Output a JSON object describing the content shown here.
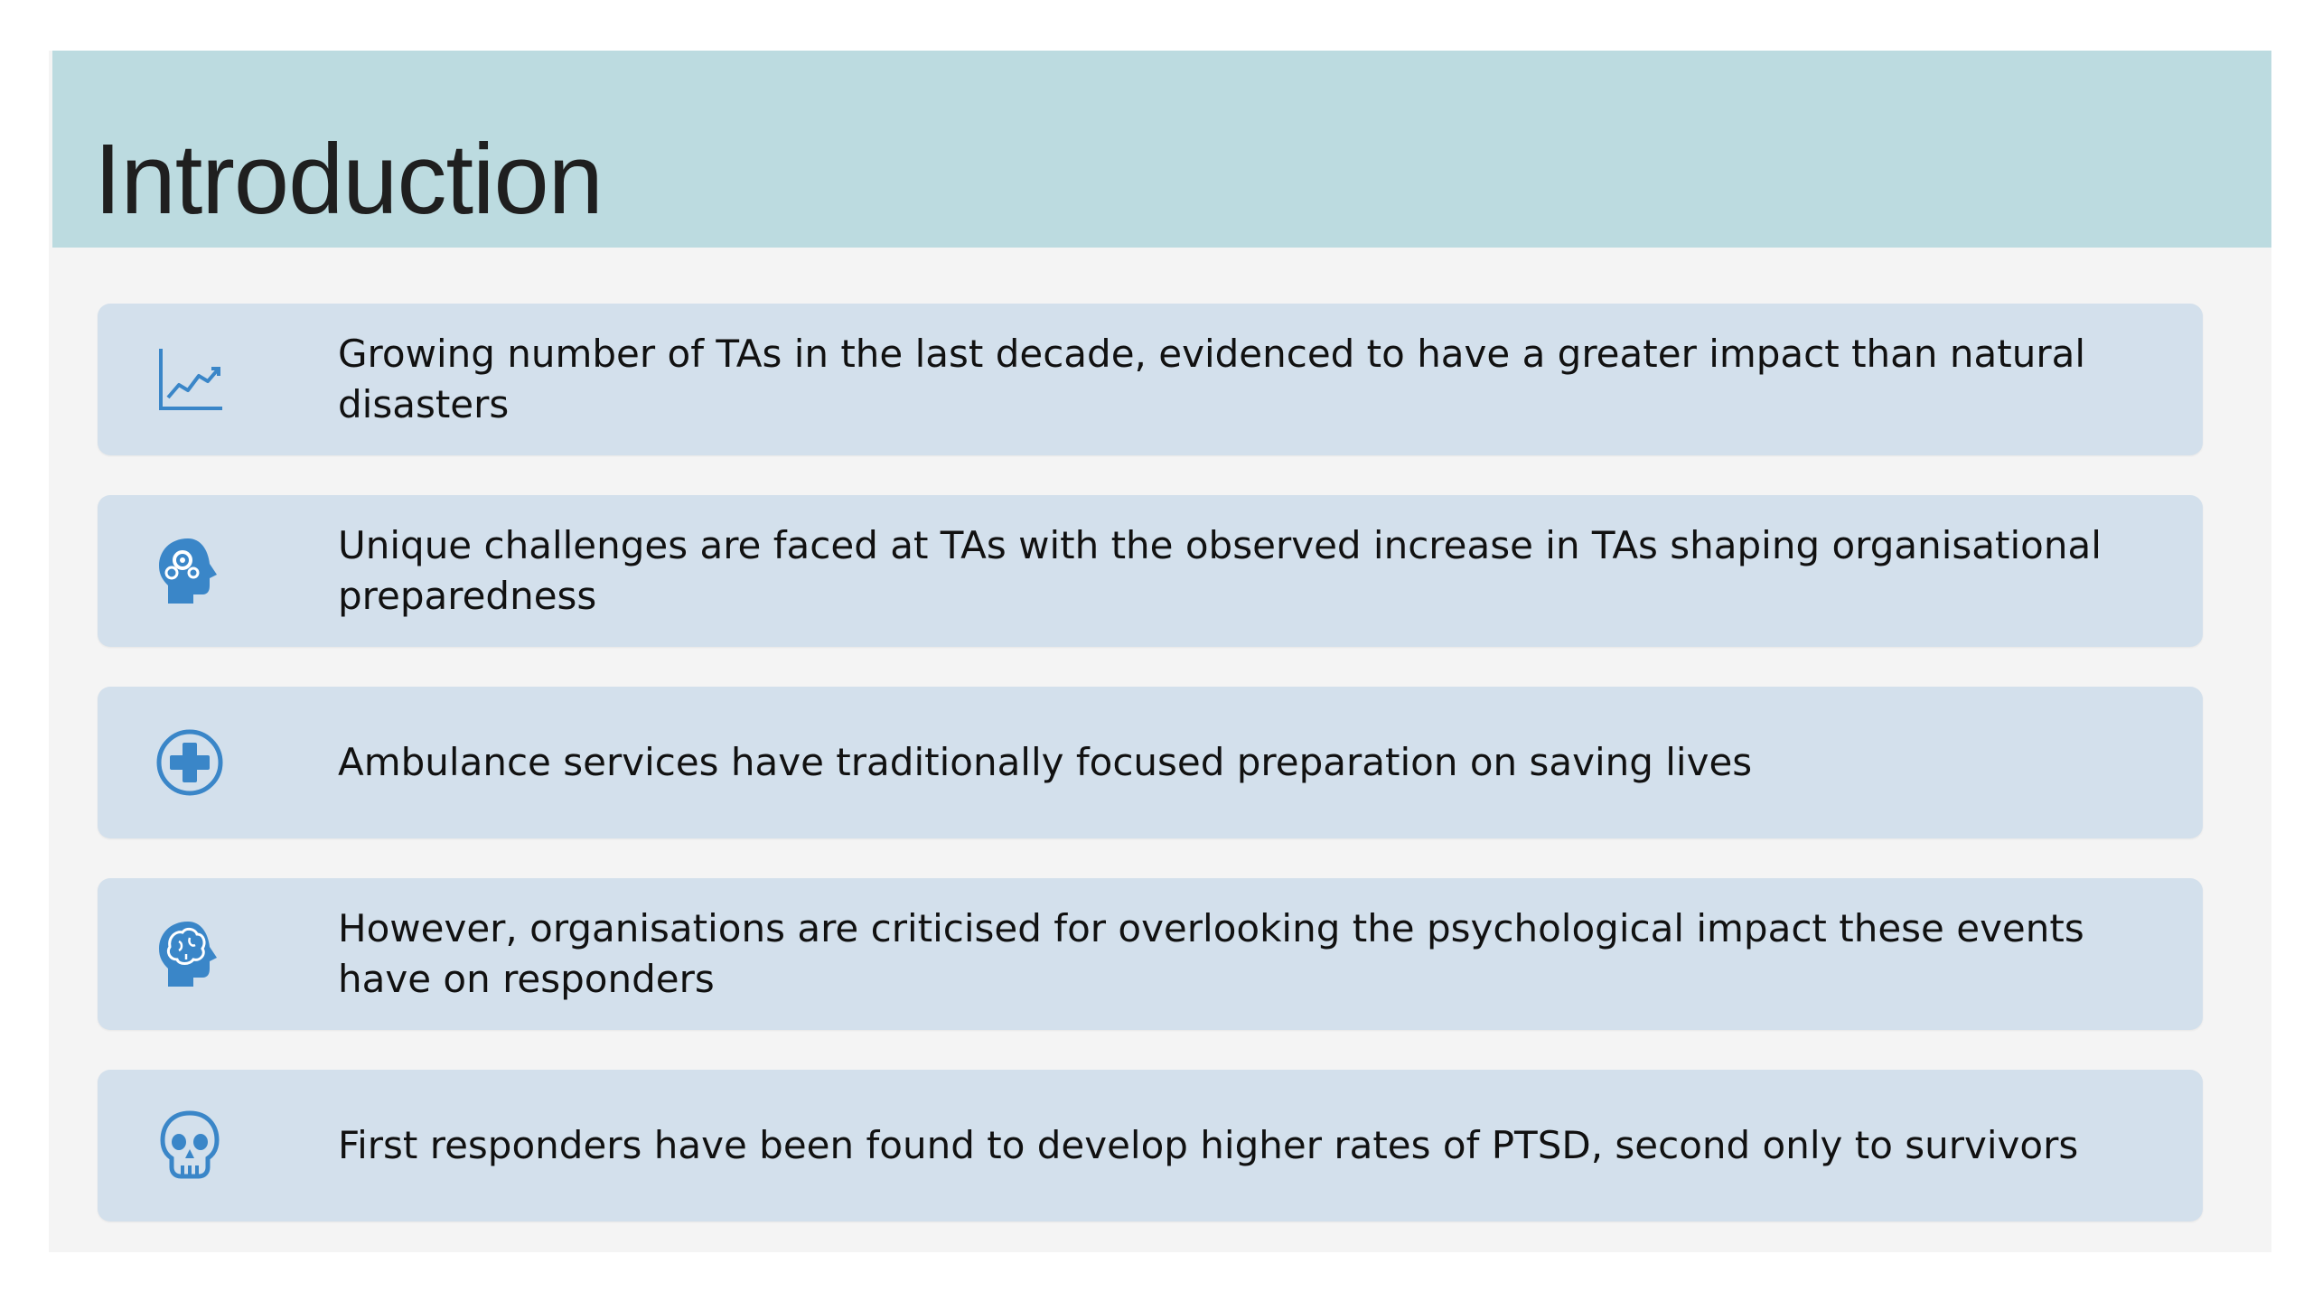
{
  "slide": {
    "title": "Introduction",
    "colors": {
      "title_bar": "#bcdbe0",
      "slide_background": "#f4f4f4",
      "card_background": "#d3e0ec",
      "icon": "#3a86c8",
      "text": "#111111"
    },
    "items": [
      {
        "icon": "line-chart-icon",
        "text": "Growing number of TAs in the last decade, evidenced to have a greater impact than natural disasters"
      },
      {
        "icon": "head-gears-icon",
        "text": "Unique challenges are faced at TAs with the observed increase in TAs shaping organisational preparedness"
      },
      {
        "icon": "medical-cross-icon",
        "text": "Ambulance services have traditionally focused preparation on saving lives"
      },
      {
        "icon": "head-brain-icon",
        "text": "However, organisations are criticised for overlooking the psychological impact these events have on responders"
      },
      {
        "icon": "skull-icon",
        "text": "First responders have been found to develop higher rates of PTSD, second only to survivors"
      }
    ]
  }
}
